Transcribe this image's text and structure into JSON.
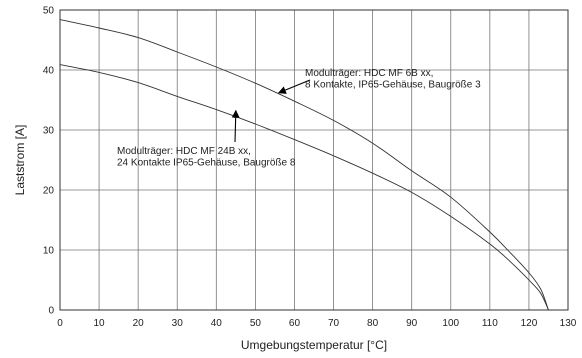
{
  "chart_data": {
    "type": "line",
    "title": "",
    "xlabel": "Umgebungstemperatur [°C]",
    "ylabel": "Laststrom [A]",
    "xlim": [
      0,
      130
    ],
    "ylim": [
      0,
      50
    ],
    "xticks": [
      0,
      10,
      20,
      30,
      40,
      50,
      60,
      70,
      80,
      90,
      100,
      110,
      120,
      130
    ],
    "yticks": [
      0,
      10,
      20,
      30,
      40,
      50
    ],
    "grid": true,
    "series": [
      {
        "x": [
          0,
          10,
          20,
          30,
          40,
          50,
          60,
          70,
          80,
          90,
          100,
          110,
          115,
          120,
          123,
          125
        ],
        "y": [
          48.4,
          47.0,
          45.4,
          43.0,
          40.5,
          37.8,
          34.8,
          31.6,
          27.8,
          23.2,
          18.8,
          13.0,
          9.7,
          6.2,
          3.5,
          0
        ]
      },
      {
        "x": [
          0,
          10,
          20,
          30,
          40,
          50,
          60,
          70,
          80,
          90,
          100,
          110,
          115,
          120,
          123,
          125
        ],
        "y": [
          40.9,
          39.6,
          37.9,
          35.6,
          33.4,
          31.0,
          28.4,
          25.7,
          22.8,
          19.6,
          15.6,
          11.0,
          8.2,
          5.0,
          2.8,
          0
        ]
      }
    ],
    "annotations": [
      {
        "lines": [
          "Modulträger: HDC MF 6B xx,",
          "8 Kontakte, IP65-Gehäuse, Baugröße 3"
        ],
        "arrow_to": [
          56,
          36.2
        ]
      },
      {
        "lines": [
          "Modulträger: HDC MF 24B xx,",
          "24 Kontakte IP65-Gehäuse, Baugröße 8"
        ],
        "arrow_to": [
          45,
          33.2
        ]
      }
    ]
  }
}
